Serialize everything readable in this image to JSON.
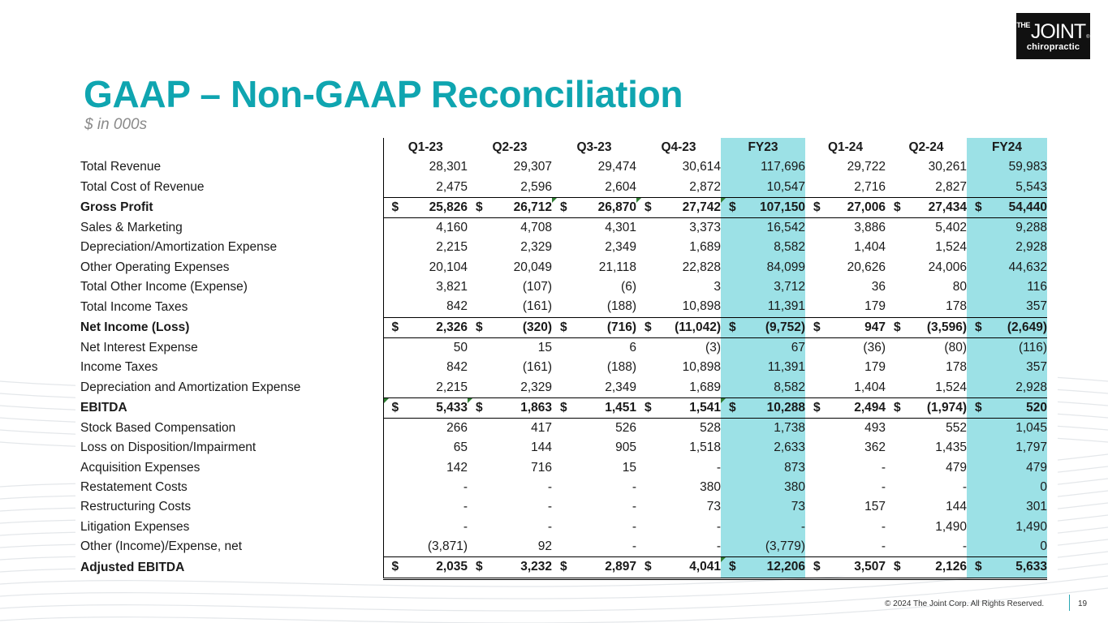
{
  "logo": {
    "the": "THE",
    "joint": "JOINT",
    "reg": "®",
    "sub": "chiropractic"
  },
  "title": "GAAP – Non-GAAP Reconciliation",
  "subtitle": "$ in 000s",
  "currency_symbol": "$",
  "columns": [
    "Q1-23",
    "Q2-23",
    "Q3-23",
    "Q4-23",
    "FY23",
    "Q1-24",
    "Q2-24",
    "FY24"
  ],
  "rows": [
    {
      "label": "Total Revenue",
      "values": [
        "28,301",
        "29,307",
        "29,474",
        "30,614",
        "117,696",
        "29,722",
        "30,261",
        "59,983"
      ]
    },
    {
      "label": "Total Cost of Revenue",
      "values": [
        "2,475",
        "2,596",
        "2,604",
        "2,872",
        "10,547",
        "2,716",
        "2,827",
        "5,543"
      ]
    },
    {
      "label": "Gross Profit",
      "values": [
        "25,826",
        "26,712",
        "26,870",
        "27,742",
        "107,150",
        "27,006",
        "27,434",
        "54,440"
      ]
    },
    {
      "label": "Sales & Marketing",
      "values": [
        "4,160",
        "4,708",
        "4,301",
        "3,373",
        "16,542",
        "3,886",
        "5,402",
        "9,288"
      ]
    },
    {
      "label": "Depreciation/Amortization Expense",
      "values": [
        "2,215",
        "2,329",
        "2,349",
        "1,689",
        "8,582",
        "1,404",
        "1,524",
        "2,928"
      ]
    },
    {
      "label": "Other Operating Expenses",
      "values": [
        "20,104",
        "20,049",
        "21,118",
        "22,828",
        "84,099",
        "20,626",
        "24,006",
        "44,632"
      ]
    },
    {
      "label": "Total Other Income (Expense)",
      "values": [
        "3,821",
        "(107)",
        "(6)",
        "3",
        "3,712",
        "36",
        "80",
        "116"
      ]
    },
    {
      "label": "Total Income Taxes",
      "values": [
        "842",
        "(161)",
        "(188)",
        "10,898",
        "11,391",
        "179",
        "178",
        "357"
      ]
    },
    {
      "label": "Net Income (Loss)",
      "values": [
        "2,326",
        "(320)",
        "(716)",
        "(11,042)",
        "(9,752)",
        "947",
        "(3,596)",
        "(2,649)"
      ]
    },
    {
      "label": "Net Interest Expense",
      "values": [
        "50",
        "15",
        "6",
        "(3)",
        "67",
        "(36)",
        "(80)",
        "(116)"
      ]
    },
    {
      "label": "Income Taxes",
      "values": [
        "842",
        "(161)",
        "(188)",
        "10,898",
        "11,391",
        "179",
        "178",
        "357"
      ]
    },
    {
      "label": "Depreciation and Amortization Expense",
      "values": [
        "2,215",
        "2,329",
        "2,349",
        "1,689",
        "8,582",
        "1,404",
        "1,524",
        "2,928"
      ]
    },
    {
      "label": "EBITDA",
      "values": [
        "5,433",
        "1,863",
        "1,451",
        "1,541",
        "10,288",
        "2,494",
        "(1,974)",
        "520"
      ]
    },
    {
      "label": "Stock Based Compensation",
      "values": [
        "266",
        "417",
        "526",
        "528",
        "1,738",
        "493",
        "552",
        "1,045"
      ]
    },
    {
      "label": "Loss on Disposition/Impairment",
      "values": [
        "65",
        "144",
        "905",
        "1,518",
        "2,633",
        "362",
        "1,435",
        "1,797"
      ]
    },
    {
      "label": "Acquisition Expenses",
      "values": [
        "142",
        "716",
        "15",
        "-",
        "873",
        "-",
        "479",
        "479"
      ]
    },
    {
      "label": "Restatement Costs",
      "values": [
        "-",
        "-",
        "-",
        "380",
        "380",
        "-",
        "-",
        "0"
      ]
    },
    {
      "label": "Restructuring Costs",
      "values": [
        "-",
        "-",
        "-",
        "73",
        "73",
        "157",
        "144",
        "301"
      ]
    },
    {
      "label": "Litigation Expenses",
      "values": [
        "-",
        "-",
        "-",
        "-",
        "-",
        "-",
        "1,490",
        "1,490"
      ]
    },
    {
      "label": "Other (Income)/Expense, net",
      "values": [
        "(3,871)",
        "92",
        "-",
        "-",
        "(3,779)",
        "-",
        "-",
        "0"
      ]
    },
    {
      "label": "Adjusted EBITDA",
      "values": [
        "2,035",
        "3,232",
        "2,897",
        "4,041",
        "12,206",
        "3,507",
        "2,126",
        "5,633"
      ]
    }
  ],
  "footer": {
    "copyright": "© 2024 The Joint Corp. All Rights Reserved.",
    "page": "19"
  }
}
